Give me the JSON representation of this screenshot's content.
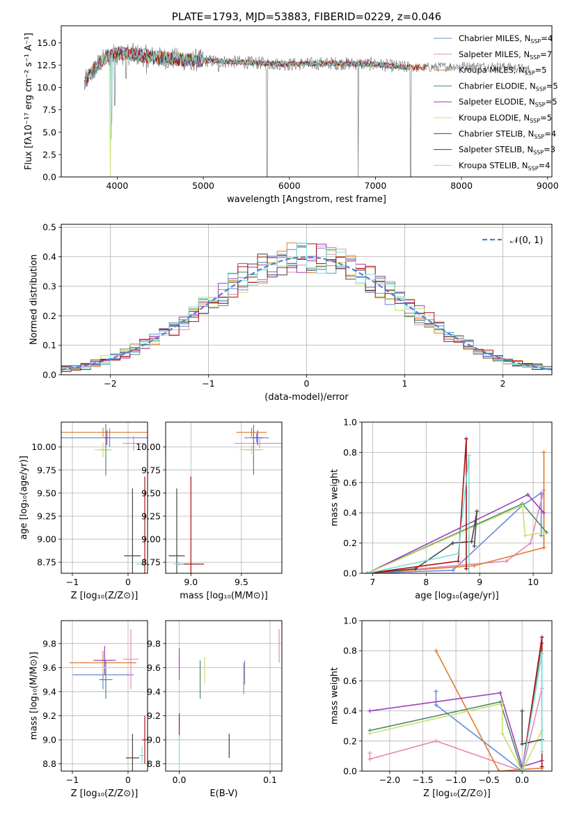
{
  "palette": [
    "#6688dd",
    "#e887b7",
    "#e07b2a",
    "#4a8a6a",
    "#9b3db6",
    "#c8e06a",
    "#444444",
    "#aa1111",
    "#7adcdc"
  ],
  "chart_data": [
    {
      "id": "spectrum",
      "type": "line",
      "title": "PLATE=1793, MJD=53883, FIBERID=0229, z=0.046",
      "xlabel": "wavelength [Angstrom, rest frame]",
      "ylabel": "Flux [fλ10⁻¹⁷ erg cm⁻² s⁻¹ A⁻¹]",
      "xlim": [
        3350,
        9050
      ],
      "ylim": [
        0,
        16.9
      ],
      "xticks": [
        "4000",
        "5000",
        "6000",
        "7000",
        "8000",
        "9000"
      ],
      "yticks": [
        "0.0",
        "2.5",
        "5.0",
        "7.5",
        "10.0",
        "12.5",
        "15.0"
      ],
      "legend_position": "top-right",
      "legend": [
        {
          "base": "Chabrier MILES, N",
          "sub": "SSP",
          "tail": "=4"
        },
        {
          "base": "Salpeter MILES, N",
          "sub": "SSP",
          "tail": "=7"
        },
        {
          "base": "Kroupa MILES, N",
          "sub": "SSP",
          "tail": "=5"
        },
        {
          "base": "Chabrier ELODIE, N",
          "sub": "SSP",
          "tail": "=5"
        },
        {
          "base": "Salpeter ELODIE, N",
          "sub": "SSP",
          "tail": "=5"
        },
        {
          "base": "Kroupa ELODIE, N",
          "sub": "SSP",
          "tail": "=5"
        },
        {
          "base": "Chabrier STELIB, N",
          "sub": "SSP",
          "tail": "=4"
        },
        {
          "base": "Salpeter STELIB, N",
          "sub": "SSP",
          "tail": "=3"
        },
        {
          "base": "Kroupa STELIB, N",
          "sub": "SSP",
          "tail": "=4"
        }
      ],
      "legend_colors": [
        "#6688dd",
        "#e887b7",
        "#e07b2a",
        "#4a8a6a",
        "#9b3db6",
        "#c8e06a",
        "#444444",
        "#aa1111",
        "#7adcdc"
      ],
      "continuum": [
        [
          3600,
          10.2
        ],
        [
          3700,
          11.6
        ],
        [
          3800,
          12.8
        ],
        [
          3900,
          13.5
        ],
        [
          4000,
          13.8
        ],
        [
          4200,
          13.7
        ],
        [
          4500,
          13.3
        ],
        [
          5000,
          13.0
        ],
        [
          5500,
          12.8
        ],
        [
          6000,
          12.6
        ],
        [
          6500,
          12.7
        ],
        [
          7000,
          12.6
        ],
        [
          7300,
          12.3
        ],
        [
          7500,
          12.2
        ],
        [
          8000,
          12.4
        ],
        [
          8500,
          12.3
        ],
        [
          8800,
          12.0
        ]
      ],
      "absorption_lines": [
        [
          3934,
          6.0
        ],
        [
          3969,
          8.0
        ],
        [
          4101,
          11.0
        ],
        [
          4340,
          11.5
        ],
        [
          4861,
          12.0
        ],
        [
          5175,
          11.8
        ],
        [
          5740,
          0.0
        ],
        [
          6563,
          12.0
        ],
        [
          6800,
          0.0
        ],
        [
          7410,
          0.0
        ]
      ]
    },
    {
      "id": "residuals",
      "type": "histogram",
      "xlabel": "(data-model)/error",
      "ylabel": "Normed distribution",
      "xlim": [
        -2.5,
        2.5
      ],
      "ylim": [
        0,
        0.51
      ],
      "xticks": [
        "−2",
        "−1",
        "0",
        "1",
        "2"
      ],
      "yticks": [
        "0.0",
        "0.1",
        "0.2",
        "0.3",
        "0.4",
        "0.5"
      ],
      "reference_curve": {
        "label": "𝒩(0, 1)",
        "mean": 0,
        "sigma": 1
      },
      "bin_width": 0.1
    },
    {
      "id": "age-vs-Z",
      "type": "errorbar",
      "xlabel": "Z [log₁₀(Z/Z⊙)]",
      "ylabel": "age  [log₁₀(age/yr)]",
      "xlim": [
        -1.2,
        0.35
      ],
      "ylim": [
        8.63,
        10.27
      ],
      "xticks": [
        "−1",
        "0"
      ],
      "yticks": [
        "8.75",
        "9.00",
        "9.25",
        "9.50",
        "9.75",
        "10.00"
      ],
      "points": [
        {
          "x": -0.33,
          "y": 10.1,
          "xerr": 1.0,
          "yerr": 0.1
        },
        {
          "x": 0.1,
          "y": 10.04,
          "xerr": 0.2,
          "yerr": 0.08
        },
        {
          "x": -0.45,
          "y": 10.16,
          "xerr": 1.1,
          "yerr": 0.05
        },
        {
          "x": -0.4,
          "y": 9.97,
          "xerr": 0.1,
          "yerr": 0.28
        },
        {
          "x": -0.38,
          "y": 10.1,
          "xerr": 0.05,
          "yerr": 0.08
        },
        {
          "x": -0.45,
          "y": 9.97,
          "xerr": 0.15,
          "yerr": 0.08
        },
        {
          "x": 0.08,
          "y": 8.82,
          "xerr": 0.15,
          "yerr": 0.73
        },
        {
          "x": 0.3,
          "y": 8.73,
          "xerr": 0.04,
          "yerr": 0.95
        },
        {
          "x": 0.25,
          "y": 8.73,
          "xerr": 0.1,
          "yerr": 0.02
        }
      ]
    },
    {
      "id": "age-vs-mass",
      "type": "errorbar",
      "xlabel": "mass [log₁₀(M/M⊙)]",
      "ylabel": "",
      "xlim": [
        8.75,
        9.9
      ],
      "ylim": [
        8.63,
        10.27
      ],
      "xticks": [
        "9.0",
        "9.5"
      ],
      "yticks": [
        "8.75",
        "9.00",
        "9.25",
        "9.50",
        "9.75",
        "10.00"
      ],
      "points": [
        {
          "x": 9.65,
          "y": 10.1,
          "xerr": 0.12,
          "yerr": 0.05
        },
        {
          "x": 9.68,
          "y": 10.04,
          "xerr": 0.25,
          "yerr": 0.05
        },
        {
          "x": 9.6,
          "y": 10.16,
          "xerr": 0.15,
          "yerr": 0.05
        },
        {
          "x": 9.62,
          "y": 9.97,
          "xerr": 0.08,
          "yerr": 0.27
        },
        {
          "x": 9.66,
          "y": 10.1,
          "xerr": 0.05,
          "yerr": 0.08
        },
        {
          "x": 9.6,
          "y": 9.97,
          "xerr": 0.12,
          "yerr": 0.05
        },
        {
          "x": 8.86,
          "y": 8.82,
          "xerr": 0.08,
          "yerr": 0.73
        },
        {
          "x": 9.0,
          "y": 8.73,
          "xerr": 0.13,
          "yerr": 0.95
        },
        {
          "x": 8.88,
          "y": 8.73,
          "xerr": 0.05,
          "yerr": 0.02
        }
      ]
    },
    {
      "id": "weight-vs-age",
      "type": "line",
      "xlabel": "age  [log₁₀(age/yr)]",
      "ylabel": "mass weight",
      "xlim": [
        6.8,
        10.35
      ],
      "ylim": [
        0,
        1.0
      ],
      "xticks": [
        "7",
        "8",
        "9",
        "10"
      ],
      "yticks": [
        "0.0",
        "0.2",
        "0.4",
        "0.6",
        "0.8",
        "1.0"
      ],
      "series": [
        {
          "points": [
            [
              6.9,
              0.0
            ],
            [
              8.5,
              0.02
            ],
            [
              9.8,
              0.45
            ],
            [
              10.15,
              0.53
            ],
            [
              10.15,
              0.25
            ]
          ]
        },
        {
          "points": [
            [
              6.9,
              0.0
            ],
            [
              9.5,
              0.08
            ],
            [
              9.95,
              0.2
            ],
            [
              10.2,
              0.55
            ],
            [
              10.2,
              0.17
            ]
          ]
        },
        {
          "points": [
            [
              6.9,
              0.0
            ],
            [
              8.9,
              0.05
            ],
            [
              10.2,
              0.17
            ],
            [
              10.2,
              0.8
            ]
          ]
        },
        {
          "points": [
            [
              6.9,
              0.0
            ],
            [
              9.8,
              0.46
            ],
            [
              10.25,
              0.27
            ]
          ]
        },
        {
          "points": [
            [
              6.9,
              0.0
            ],
            [
              9.9,
              0.52
            ],
            [
              10.2,
              0.4
            ]
          ]
        },
        {
          "points": [
            [
              6.9,
              0.0
            ],
            [
              9.8,
              0.45
            ],
            [
              9.85,
              0.25
            ],
            [
              10.2,
              0.27
            ]
          ]
        },
        {
          "points": [
            [
              6.9,
              0.0
            ],
            [
              7.8,
              0.03
            ],
            [
              8.5,
              0.2
            ],
            [
              8.85,
              0.21
            ],
            [
              8.95,
              0.41
            ],
            [
              8.9,
              0.18
            ]
          ]
        },
        {
          "points": [
            [
              6.9,
              0.0
            ],
            [
              8.6,
              0.08
            ],
            [
              8.75,
              0.89
            ],
            [
              8.75,
              0.03
            ]
          ]
        },
        {
          "points": [
            [
              6.9,
              0.0
            ],
            [
              8.6,
              0.13
            ],
            [
              8.8,
              0.78
            ],
            [
              8.8,
              0.0
            ]
          ]
        }
      ]
    },
    {
      "id": "mass-vs-Z",
      "type": "errorbar",
      "xlabel": "Z [log₁₀(Z/Z⊙)]",
      "ylabel": "mass [log₁₀(M/M⊙)]",
      "xlim": [
        -1.2,
        0.35
      ],
      "ylim": [
        8.74,
        9.99
      ],
      "xticks": [
        "−1",
        "0"
      ],
      "yticks": [
        "8.8",
        "9.0",
        "9.2",
        "9.4",
        "9.6",
        "9.8"
      ],
      "points": [
        {
          "x": -0.45,
          "y": 9.54,
          "xerr": 0.55,
          "yerr": 0.12
        },
        {
          "x": 0.05,
          "y": 9.67,
          "xerr": 0.14,
          "yerr": 0.25
        },
        {
          "x": -0.45,
          "y": 9.64,
          "xerr": 0.6,
          "yerr": 0.1
        },
        {
          "x": -0.4,
          "y": 9.5,
          "xerr": 0.12,
          "yerr": 0.16
        },
        {
          "x": -0.42,
          "y": 9.66,
          "xerr": 0.2,
          "yerr": 0.12
        },
        {
          "x": -0.45,
          "y": 9.6,
          "xerr": 0.1,
          "yerr": 0.05
        },
        {
          "x": 0.08,
          "y": 8.85,
          "xerr": 0.12,
          "yerr": 0.2
        },
        {
          "x": 0.3,
          "y": 9.0,
          "xerr": 0.05,
          "yerr": 0.2
        },
        {
          "x": 0.25,
          "y": 8.87,
          "xerr": 0.05,
          "yerr": 0.07
        }
      ]
    },
    {
      "id": "mass-vs-ebv",
      "type": "errorbar",
      "xlabel": "E(B-V)",
      "ylabel": "",
      "xlim": [
        -0.015,
        0.113
      ],
      "ylim": [
        8.74,
        9.99
      ],
      "xticks": [
        "0.0",
        "0.1"
      ],
      "yticks": [
        "8.8",
        "9.0",
        "9.2",
        "9.4",
        "9.6",
        "9.8"
      ],
      "points": [
        {
          "x": 0.072,
          "y": 9.56,
          "xerr": 0,
          "yerr": 0.1
        },
        {
          "x": 0.11,
          "y": 9.78,
          "xerr": 0,
          "yerr": 0.14
        },
        {
          "x": 0.071,
          "y": 9.51,
          "xerr": 0,
          "yerr": 0.13
        },
        {
          "x": 0.023,
          "y": 9.5,
          "xerr": 0,
          "yerr": 0.16
        },
        {
          "x": 0.0,
          "y": 9.63,
          "xerr": 0,
          "yerr": 0.13
        },
        {
          "x": 0.028,
          "y": 9.58,
          "xerr": 0,
          "yerr": 0.11
        },
        {
          "x": 0.055,
          "y": 8.95,
          "xerr": 0,
          "yerr": 0.1
        },
        {
          "x": 0.0,
          "y": 9.12,
          "xerr": 0,
          "yerr": 0.1
        },
        {
          "x": 0.0,
          "y": 8.9,
          "xerr": 0,
          "yerr": 0.14
        }
      ]
    },
    {
      "id": "weight-vs-Z",
      "type": "line",
      "xlabel": "Z [log₁₀(Z/Z⊙)]",
      "ylabel": "mass weight",
      "xlim": [
        -2.42,
        0.45
      ],
      "ylim": [
        0,
        1.0
      ],
      "xticks": [
        "−2.0",
        "−1.5",
        "−1.0",
        "−0.5",
        "0.0"
      ],
      "yticks": [
        "0.0",
        "0.2",
        "0.4",
        "0.6",
        "0.8",
        "1.0"
      ],
      "series": [
        {
          "points": [
            [
              -1.3,
              0.53
            ],
            [
              -1.3,
              0.44
            ],
            [
              0.0,
              0.0
            ],
            [
              0.3,
              0.0
            ]
          ]
        },
        {
          "points": [
            [
              -2.3,
              0.12
            ],
            [
              -2.3,
              0.08
            ],
            [
              -1.3,
              0.2
            ],
            [
              0.0,
              0.0
            ],
            [
              0.3,
              0.55
            ]
          ]
        },
        {
          "points": [
            [
              -1.3,
              0.8
            ],
            [
              -0.35,
              0.0
            ],
            [
              0.3,
              0.02
            ]
          ]
        },
        {
          "points": [
            [
              -2.3,
              0.27
            ],
            [
              -0.33,
              0.46
            ],
            [
              0.0,
              0.0
            ],
            [
              0.3,
              0.85
            ]
          ]
        },
        {
          "points": [
            [
              -2.3,
              0.4
            ],
            [
              -0.33,
              0.52
            ],
            [
              0.0,
              0.03
            ],
            [
              0.3,
              0.07
            ]
          ]
        },
        {
          "points": [
            [
              -2.3,
              0.25
            ],
            [
              -0.3,
              0.45
            ],
            [
              -0.3,
              0.25
            ],
            [
              0.0,
              0.0
            ],
            [
              0.3,
              0.27
            ]
          ]
        },
        {
          "points": [
            [
              0.0,
              0.4
            ],
            [
              0.0,
              0.18
            ],
            [
              0.3,
              0.21
            ]
          ]
        },
        {
          "points": [
            [
              0.0,
              0.0
            ],
            [
              0.3,
              0.89
            ],
            [
              0.3,
              0.03
            ]
          ]
        },
        {
          "points": [
            [
              0.0,
              0.0
            ],
            [
              0.3,
              0.78
            ],
            [
              0.3,
              0.13
            ]
          ]
        }
      ]
    }
  ]
}
